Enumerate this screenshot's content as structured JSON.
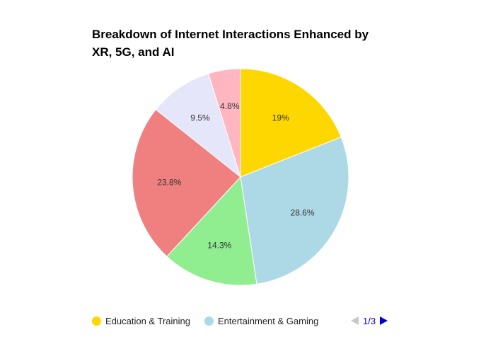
{
  "chart_data": {
    "type": "pie",
    "title": "Breakdown of Internet Interactions Enhanced by XR, 5G, and AI",
    "slices": [
      {
        "name": "Education & Training",
        "value": 19,
        "label": "19%",
        "color": "#FFD700"
      },
      {
        "name": "Entertainment & Gaming",
        "value": 28.6,
        "label": "28.6%",
        "color": "#ADD8E6"
      },
      {
        "value": 14.3,
        "label": "14.3%",
        "color": "#90EE90"
      },
      {
        "value": 23.8,
        "label": "23.8%",
        "color": "#F08080"
      },
      {
        "value": 9.5,
        "label": "9.5%",
        "color": "#E6E6FA"
      },
      {
        "value": 4.8,
        "label": "4.8%",
        "color": "#FFB6C1"
      }
    ],
    "start_angle_deg": 0,
    "direction": "clockwise",
    "legend": {
      "placement": "bottom",
      "visible_entries": [
        "Education & Training",
        "Entertainment & Gaming"
      ],
      "page": "1/3"
    }
  }
}
